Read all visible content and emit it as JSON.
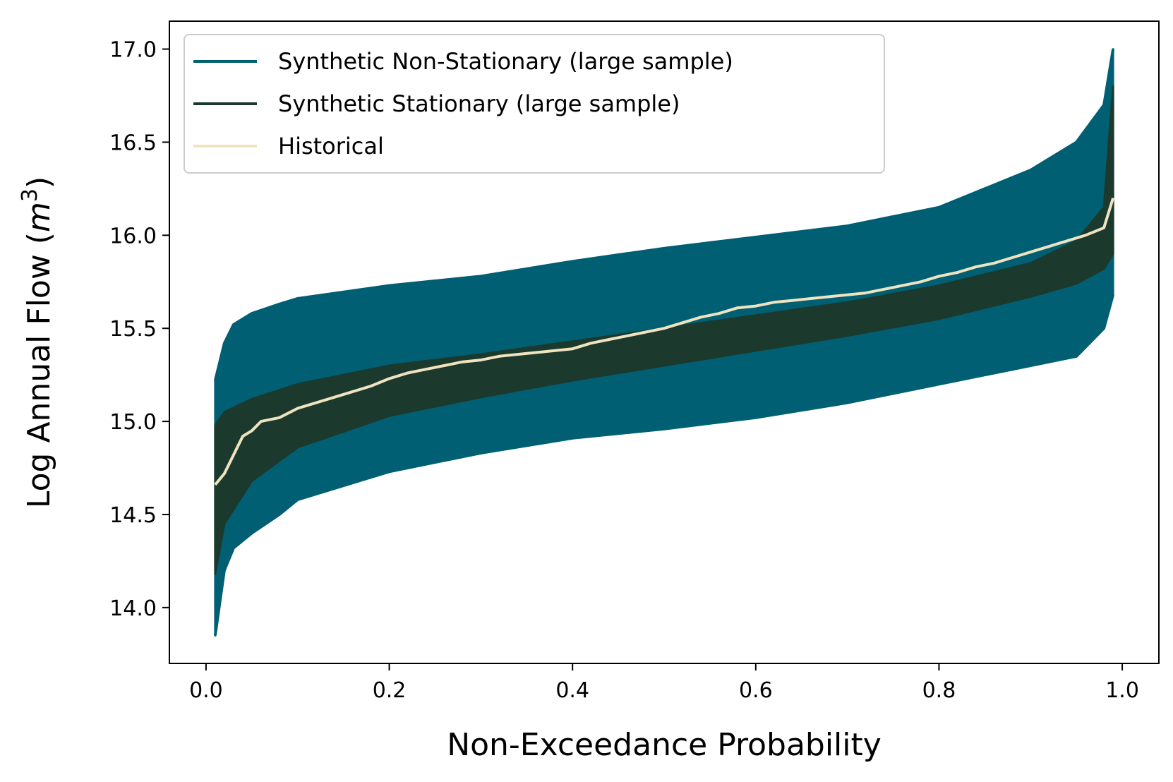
{
  "chart_data": {
    "type": "line",
    "xlabel": "Non-Exceedance Probability",
    "ylabel_text": "Log Annual Flow (",
    "ylabel_var": "m",
    "ylabel_sup": "3",
    "ylabel_close": ")",
    "xlim": [
      -0.04,
      1.04
    ],
    "ylim": [
      13.7,
      17.15
    ],
    "xticks": [
      0.0,
      0.2,
      0.4,
      0.6,
      0.8,
      1.0
    ],
    "xtick_labels": [
      "0.0",
      "0.2",
      "0.4",
      "0.6",
      "0.8",
      "1.0"
    ],
    "yticks": [
      14.0,
      14.5,
      15.0,
      15.5,
      16.0,
      16.5,
      17.0
    ],
    "ytick_labels": [
      "14.0",
      "14.5",
      "15.0",
      "15.5",
      "16.0",
      "16.5",
      "17.0"
    ],
    "grid": false,
    "legend_position": "top-left",
    "colors": {
      "non_stationary": "#005f73",
      "stationary": "#1b3a2d",
      "historical": "#efe3c0"
    },
    "series": [
      {
        "name": "Synthetic Non-Stationary (large sample)",
        "kind": "ensemble band",
        "color": "#005f73",
        "x": [
          0.01,
          0.02,
          0.03,
          0.05,
          0.08,
          0.1,
          0.2,
          0.3,
          0.4,
          0.5,
          0.6,
          0.7,
          0.8,
          0.9,
          0.95,
          0.98,
          0.99
        ],
        "upper": [
          15.22,
          15.42,
          15.52,
          15.58,
          15.63,
          15.66,
          15.73,
          15.78,
          15.86,
          15.93,
          15.99,
          16.05,
          16.15,
          16.35,
          16.5,
          16.7,
          17.0
        ],
        "lower": [
          13.85,
          14.2,
          14.32,
          14.4,
          14.5,
          14.58,
          14.73,
          14.83,
          14.91,
          14.96,
          15.02,
          15.1,
          15.2,
          15.3,
          15.35,
          15.5,
          15.68
        ]
      },
      {
        "name": "Synthetic Stationary (large sample)",
        "kind": "ensemble band",
        "color": "#1b3a2d",
        "x": [
          0.01,
          0.02,
          0.05,
          0.1,
          0.2,
          0.3,
          0.4,
          0.5,
          0.6,
          0.7,
          0.8,
          0.9,
          0.95,
          0.98,
          0.99
        ],
        "upper": [
          14.98,
          15.05,
          15.12,
          15.2,
          15.3,
          15.36,
          15.43,
          15.5,
          15.57,
          15.64,
          15.73,
          15.85,
          15.97,
          16.15,
          16.8
        ],
        "lower": [
          14.18,
          14.45,
          14.68,
          14.86,
          15.03,
          15.13,
          15.22,
          15.3,
          15.38,
          15.46,
          15.55,
          15.67,
          15.74,
          15.82,
          15.9
        ]
      },
      {
        "name": "Historical",
        "kind": "line",
        "color": "#efe3c0",
        "x": [
          0.01,
          0.02,
          0.03,
          0.04,
          0.05,
          0.06,
          0.08,
          0.1,
          0.12,
          0.14,
          0.16,
          0.18,
          0.2,
          0.22,
          0.24,
          0.26,
          0.28,
          0.3,
          0.32,
          0.34,
          0.36,
          0.38,
          0.4,
          0.42,
          0.44,
          0.46,
          0.48,
          0.5,
          0.52,
          0.54,
          0.56,
          0.58,
          0.6,
          0.62,
          0.64,
          0.66,
          0.68,
          0.7,
          0.72,
          0.74,
          0.76,
          0.78,
          0.8,
          0.82,
          0.84,
          0.86,
          0.88,
          0.9,
          0.92,
          0.94,
          0.96,
          0.98,
          0.99
        ],
        "y": [
          14.66,
          14.72,
          14.82,
          14.92,
          14.95,
          15.0,
          15.02,
          15.07,
          15.1,
          15.13,
          15.16,
          15.19,
          15.23,
          15.26,
          15.28,
          15.3,
          15.32,
          15.33,
          15.35,
          15.36,
          15.37,
          15.38,
          15.39,
          15.42,
          15.44,
          15.46,
          15.48,
          15.5,
          15.53,
          15.56,
          15.58,
          15.61,
          15.62,
          15.64,
          15.65,
          15.66,
          15.67,
          15.68,
          15.69,
          15.71,
          15.73,
          15.75,
          15.78,
          15.8,
          15.83,
          15.85,
          15.88,
          15.91,
          15.94,
          15.97,
          16.0,
          16.04,
          16.2
        ]
      }
    ]
  }
}
